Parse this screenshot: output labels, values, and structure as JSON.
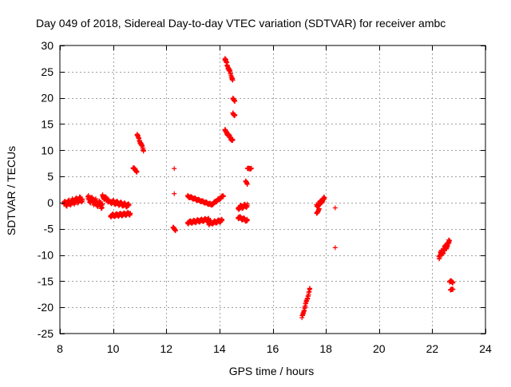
{
  "chart_data": {
    "type": "scatter",
    "title": "Day 049 of 2018, Sidereal Day-to-day VTEC variation (SDTVAR) for receiver ambc",
    "xlabel": "GPS time / hours",
    "ylabel": "SDTVAR / TECUs",
    "xlim": [
      8,
      24
    ],
    "ylim": [
      -25,
      30
    ],
    "xticks": [
      8,
      10,
      12,
      14,
      16,
      18,
      20,
      22,
      24
    ],
    "yticks": [
      -25,
      -20,
      -15,
      -10,
      -5,
      0,
      5,
      10,
      15,
      20,
      25,
      30
    ],
    "grid": true,
    "marker": "plus",
    "colors": {
      "series": "#ff0000",
      "grid": "#a0a0a0",
      "axis": "#000000"
    },
    "series": [
      {
        "name": "SDTVAR",
        "segments": [
          {
            "x_start": 8.15,
            "x_end": 8.85,
            "y_start": -0.3,
            "y_end": 0.7,
            "wiggle": 0.6
          },
          {
            "x_start": 9.05,
            "x_end": 9.6,
            "y_start": 0.8,
            "y_end": -0.6,
            "wiggle": 0.7
          },
          {
            "x_start": 9.6,
            "x_end": 9.85,
            "y_start": 1.2,
            "y_end": 0.3,
            "wiggle": 0.4
          },
          {
            "x_start": 9.9,
            "x_end": 10.6,
            "y_start": 0.2,
            "y_end": -0.6,
            "wiggle": 0.4
          },
          {
            "x_start": 9.9,
            "x_end": 10.65,
            "y_start": -2.5,
            "y_end": -2.1,
            "wiggle": 0.3
          },
          {
            "x_start": 10.75,
            "x_end": 10.9,
            "y_start": 6.7,
            "y_end": 5.9,
            "wiggle": 0.2
          },
          {
            "x_start": 10.9,
            "x_end": 11.15,
            "y_start": 13.0,
            "y_end": 10.0,
            "wiggle": 0.3
          },
          {
            "x_start": 12.25,
            "x_end": 12.35,
            "y_start": -4.8,
            "y_end": -5.2,
            "wiggle": 0.2
          },
          {
            "x_start": 12.8,
            "x_end": 13.7,
            "y_start": 1.2,
            "y_end": -0.4,
            "wiggle": 0.2
          },
          {
            "x_start": 13.7,
            "x_end": 14.15,
            "y_start": -0.4,
            "y_end": 1.3,
            "wiggle": 0.2
          },
          {
            "x_start": 12.8,
            "x_end": 13.6,
            "y_start": -3.8,
            "y_end": -3.2,
            "wiggle": 0.3
          },
          {
            "x_start": 13.6,
            "x_end": 14.1,
            "y_start": -4.0,
            "y_end": -3.4,
            "wiggle": 0.3
          },
          {
            "x_start": 14.2,
            "x_end": 14.5,
            "y_start": 27.5,
            "y_end": 23.5,
            "wiggle": 0.4
          },
          {
            "x_start": 14.2,
            "x_end": 14.5,
            "y_start": 13.8,
            "y_end": 11.8,
            "wiggle": 0.3
          },
          {
            "x_start": 14.5,
            "x_end": 14.58,
            "y_start": 19.8,
            "y_end": 19.5,
            "wiggle": 0.2
          },
          {
            "x_start": 14.5,
            "x_end": 14.58,
            "y_start": 17.0,
            "y_end": 16.7,
            "wiggle": 0.2
          },
          {
            "x_start": 14.7,
            "x_end": 15.05,
            "y_start": -1.0,
            "y_end": -0.5,
            "wiggle": 0.4
          },
          {
            "x_start": 14.7,
            "x_end": 15.05,
            "y_start": -2.8,
            "y_end": -3.4,
            "wiggle": 0.3
          },
          {
            "x_start": 14.98,
            "x_end": 15.05,
            "y_start": 4.2,
            "y_end": 3.4,
            "wiggle": 0.2
          },
          {
            "x_start": 15.05,
            "x_end": 15.2,
            "y_start": 6.5,
            "y_end": 6.5,
            "wiggle": 0.1
          },
          {
            "x_start": 17.1,
            "x_end": 17.4,
            "y_start": -22.0,
            "y_end": -16.5,
            "wiggle": 0.3
          },
          {
            "x_start": 17.65,
            "x_end": 17.95,
            "y_start": -0.7,
            "y_end": 0.8,
            "wiggle": 0.4
          },
          {
            "x_start": 17.65,
            "x_end": 17.75,
            "y_start": -2.0,
            "y_end": -1.3,
            "wiggle": 0.2
          },
          {
            "x_start": 22.25,
            "x_end": 22.65,
            "y_start": -10.3,
            "y_end": -7.5,
            "wiggle": 0.6
          },
          {
            "x_start": 22.65,
            "x_end": 22.78,
            "y_start": -15.0,
            "y_end": -15.2,
            "wiggle": 0.2
          },
          {
            "x_start": 22.68,
            "x_end": 22.78,
            "y_start": -16.7,
            "y_end": -16.5,
            "wiggle": 0.1
          }
        ],
        "isolated_points": [
          {
            "x": 12.3,
            "y": 6.5
          },
          {
            "x": 12.3,
            "y": 1.7
          },
          {
            "x": 18.35,
            "y": -1.0
          },
          {
            "x": 18.35,
            "y": -8.6
          }
        ]
      }
    ]
  }
}
